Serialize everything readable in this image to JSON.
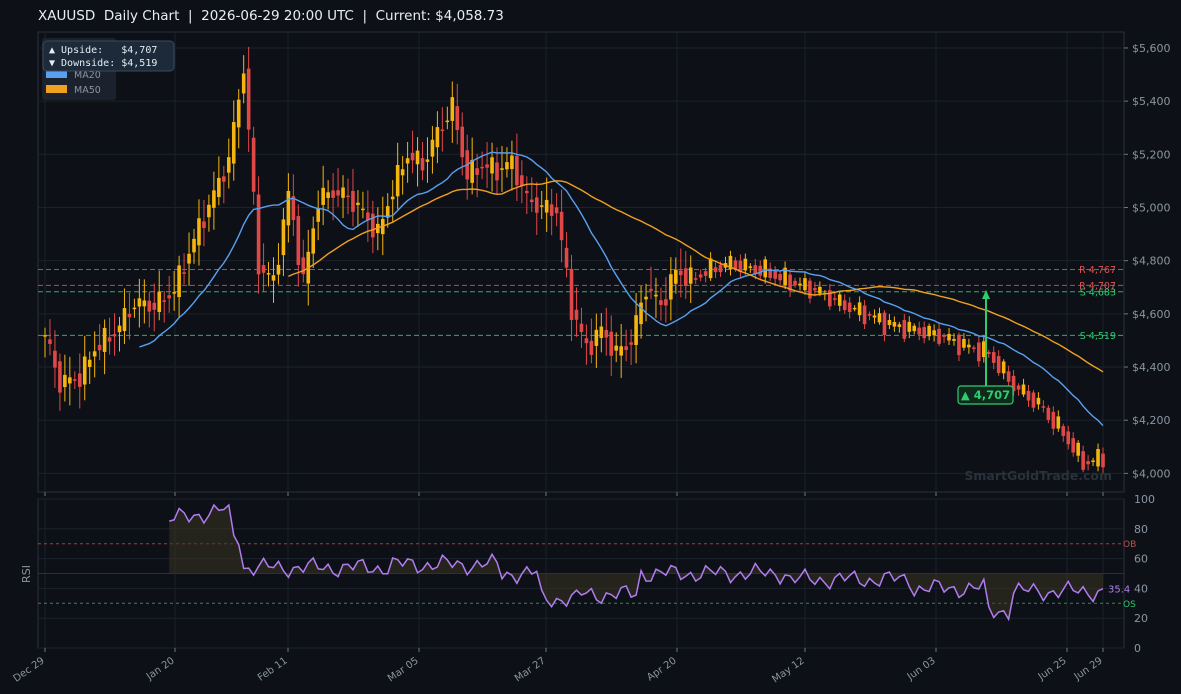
{
  "header": {
    "symbol": "XAUUSD",
    "timeframe": "Daily Chart",
    "timestamp": "2026-06-29 20:00 UTC",
    "current_label": "Current: $4,058.73",
    "separator": "|"
  },
  "legend": {
    "upside_line": "▲ Upside:   $4,707",
    "downside_line": "▼ Downside: $4,519",
    "items": [
      {
        "label": "MA20",
        "color": "#5aa0f0"
      },
      {
        "label": "MA50",
        "color": "#f0a020"
      }
    ]
  },
  "watermark": "SmartGoldTrade.com",
  "target_badge": "▲ 4,707",
  "chart_data": [
    {
      "type": "candlestick",
      "title": "XAUUSD  Daily Chart",
      "x_ticks": [
        "Dec 29",
        "Jan 20",
        "Feb 11",
        "Mar 05",
        "Mar 27",
        "Apr 20",
        "May 12",
        "Jun 03",
        "Jun 25",
        "Jun 29"
      ],
      "y_ticks": [
        "$4,000",
        "$4,200",
        "$4,400",
        "$4,600",
        "$4,800",
        "$5,000",
        "$5,200",
        "$5,400",
        "$5,600"
      ],
      "ylim": [
        3930,
        5660
      ],
      "current_price": 4058.73,
      "levels": [
        {
          "label": "R 4,767",
          "value": 4767,
          "color": "#e05252"
        },
        {
          "label": "R 4,707",
          "value": 4707,
          "color": "#e05252"
        },
        {
          "label": "S 4,683",
          "value": 4683,
          "color": "#2ecc71"
        },
        {
          "label": "S 4,519",
          "value": 4519,
          "color": "#2ecc71"
        }
      ],
      "upside_target": 4707,
      "downside_target": 4519,
      "series": [
        {
          "name": "MA20",
          "color": "#5aa0f0"
        },
        {
          "name": "MA50",
          "color": "#f0a020"
        }
      ],
      "colors": {
        "up": "#f5b50e",
        "down": "#e04848"
      },
      "legend_position": "top-left",
      "grid": true
    },
    {
      "type": "line",
      "title": "",
      "ylabel": "RSI",
      "ylim": [
        0,
        100
      ],
      "y_ticks": [
        "0",
        "20",
        "40",
        "60",
        "80",
        "100"
      ],
      "overbought": 70,
      "oversold": 30,
      "overbought_label": "OB",
      "oversold_label": "OS",
      "last_value_label": "35.4",
      "color": "#b07cf0"
    }
  ]
}
